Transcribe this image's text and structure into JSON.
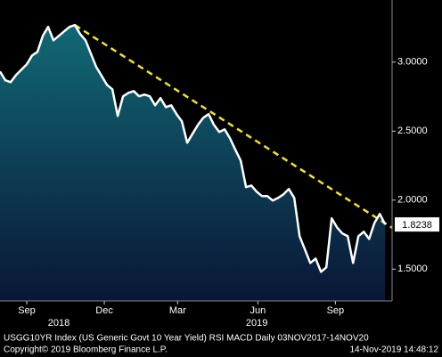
{
  "chart_data": {
    "type": "area-line",
    "values": [
      2.932,
      2.868,
      2.855,
      2.906,
      2.945,
      2.984,
      3.048,
      3.074,
      3.19,
      3.255,
      3.158,
      3.19,
      3.223,
      3.255,
      3.268,
      3.203,
      3.158,
      3.061,
      2.965,
      2.9,
      2.835,
      2.803,
      2.61,
      2.752,
      2.777,
      2.79,
      2.752,
      2.765,
      2.752,
      2.687,
      2.739,
      2.674,
      2.687,
      2.623,
      2.571,
      2.416,
      2.481,
      2.545,
      2.597,
      2.623,
      2.545,
      2.494,
      2.513,
      2.448,
      2.365,
      2.287,
      2.094,
      2.106,
      2.061,
      2.029,
      2.029,
      1.997,
      2.016,
      2.042,
      2.081,
      2.016,
      1.739,
      1.642,
      1.545,
      1.577,
      1.481,
      1.513,
      1.868,
      1.803,
      1.758,
      1.739,
      1.545,
      1.739,
      1.771,
      1.719,
      1.835,
      1.9,
      1.8238
    ],
    "color": "#ffffff",
    "fill_top": "#11707a",
    "fill_bottom": "#0a1636",
    "trendline": {
      "x": [
        14,
        73.3
      ],
      "values": [
        3.268,
        1.8
      ],
      "color": "#f5e51b"
    },
    "xlim": [
      0,
      73.3
    ],
    "xticks": [
      {
        "value": 5,
        "label": "Sep"
      },
      {
        "value": 19.5,
        "label": "Dec"
      },
      {
        "value": 33.2,
        "label": "Mar"
      },
      {
        "value": 48.2,
        "label": "Jun"
      },
      {
        "value": 62.7,
        "label": "Sep"
      }
    ],
    "year_ticks": [
      {
        "value": 11,
        "label": "2018"
      },
      {
        "value": 48,
        "label": "2019"
      }
    ],
    "ylim": [
      1.27,
      3.45
    ],
    "yticks": [
      {
        "value": 1.5,
        "label": "1.5000"
      },
      {
        "value": 2,
        "label": "2.0000"
      },
      {
        "value": 2.5,
        "label": "2.5000"
      },
      {
        "value": 3,
        "label": "3.0000"
      }
    ],
    "footer_left": "USGG10YR Index (US Generic Govt 10 Year Yield) RSI MACD  Daily 03NOV2017-14NOV20",
    "footer_copyright": "Copyright© 2019 Bloomberg Finance L.P.",
    "footer_time": "14-Nov-2019 14:48:12"
  }
}
